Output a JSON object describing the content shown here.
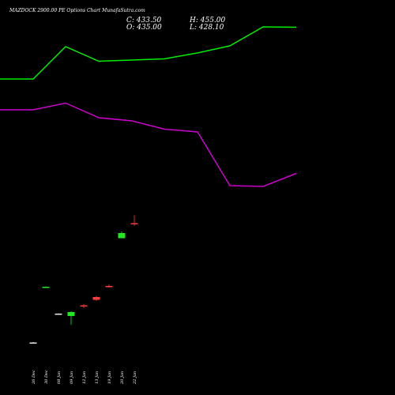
{
  "header": {
    "title": "MAZDOCK 2900.00 PE Options Chart MunafaSutra.com",
    "close_label": "C: 433.50",
    "open_label": "O: 435.00",
    "high_label": "H: 455.00",
    "low_label": "L: 428.10"
  },
  "colors": {
    "background": "#000000",
    "up_candle": "#22e822",
    "down_candle": "#ff3b3b",
    "neutral_candle": "#e6e6e6",
    "line_upper": "#00ee00",
    "line_lower": "#cc00cc"
  },
  "chart_data": {
    "type": "candlestick",
    "title": "MAZDOCK 2900.00 PE Options Chart MunafaSutra.com",
    "categories": [
      "26 Dec",
      "30 Dec",
      "08 Jan",
      "09 Jan",
      "12 Jan",
      "13 Jan",
      "19 Jan",
      "20 Jan",
      "22 Jan"
    ],
    "candles": [
      {
        "date": "26 Dec",
        "open": 133,
        "high": 134,
        "low": 132,
        "close": 133,
        "color": "neutral"
      },
      {
        "date": "30 Dec",
        "open": 274,
        "high": 275,
        "low": 273,
        "close": 274,
        "color": "up"
      },
      {
        "date": "08 Jan",
        "open": 206,
        "high": 207,
        "low": 205,
        "close": 206,
        "color": "neutral"
      },
      {
        "date": "09 Jan",
        "open": 200,
        "high": 212,
        "low": 178,
        "close": 210,
        "color": "up"
      },
      {
        "date": "12 Jan",
        "open": 224,
        "high": 230,
        "low": 220,
        "close": 227,
        "color": "down"
      },
      {
        "date": "13 Jan",
        "open": 241,
        "high": 251,
        "low": 238,
        "close": 248,
        "color": "down"
      },
      {
        "date": "19 Jan",
        "open": 274,
        "high": 280,
        "low": 272,
        "close": 276,
        "color": "down"
      },
      {
        "date": "20 Jan",
        "open": 410,
        "high": 414,
        "low": 397,
        "close": 397,
        "color": "up"
      },
      {
        "date": "22 Jan",
        "open": 435,
        "high": 455,
        "low": 428.1,
        "close": 433.5,
        "color": "down"
      }
    ],
    "ylim": [
      0,
      1000
    ],
    "lines": [
      {
        "color": "green",
        "points": [
          [
            0,
            800
          ],
          [
            42,
            800
          ],
          [
            83,
            882
          ],
          [
            125,
            845
          ],
          [
            167,
            848
          ],
          [
            208,
            851
          ],
          [
            250,
            866
          ],
          [
            291,
            884
          ],
          [
            333,
            932
          ],
          [
            375,
            931
          ]
        ]
      },
      {
        "color": "magenta",
        "points": [
          [
            0,
            722
          ],
          [
            42,
            722
          ],
          [
            83,
            739
          ],
          [
            125,
            702
          ],
          [
            167,
            694
          ],
          [
            208,
            673
          ],
          [
            250,
            666
          ],
          [
            291,
            530
          ],
          [
            333,
            528
          ],
          [
            375,
            561
          ]
        ]
      }
    ]
  }
}
